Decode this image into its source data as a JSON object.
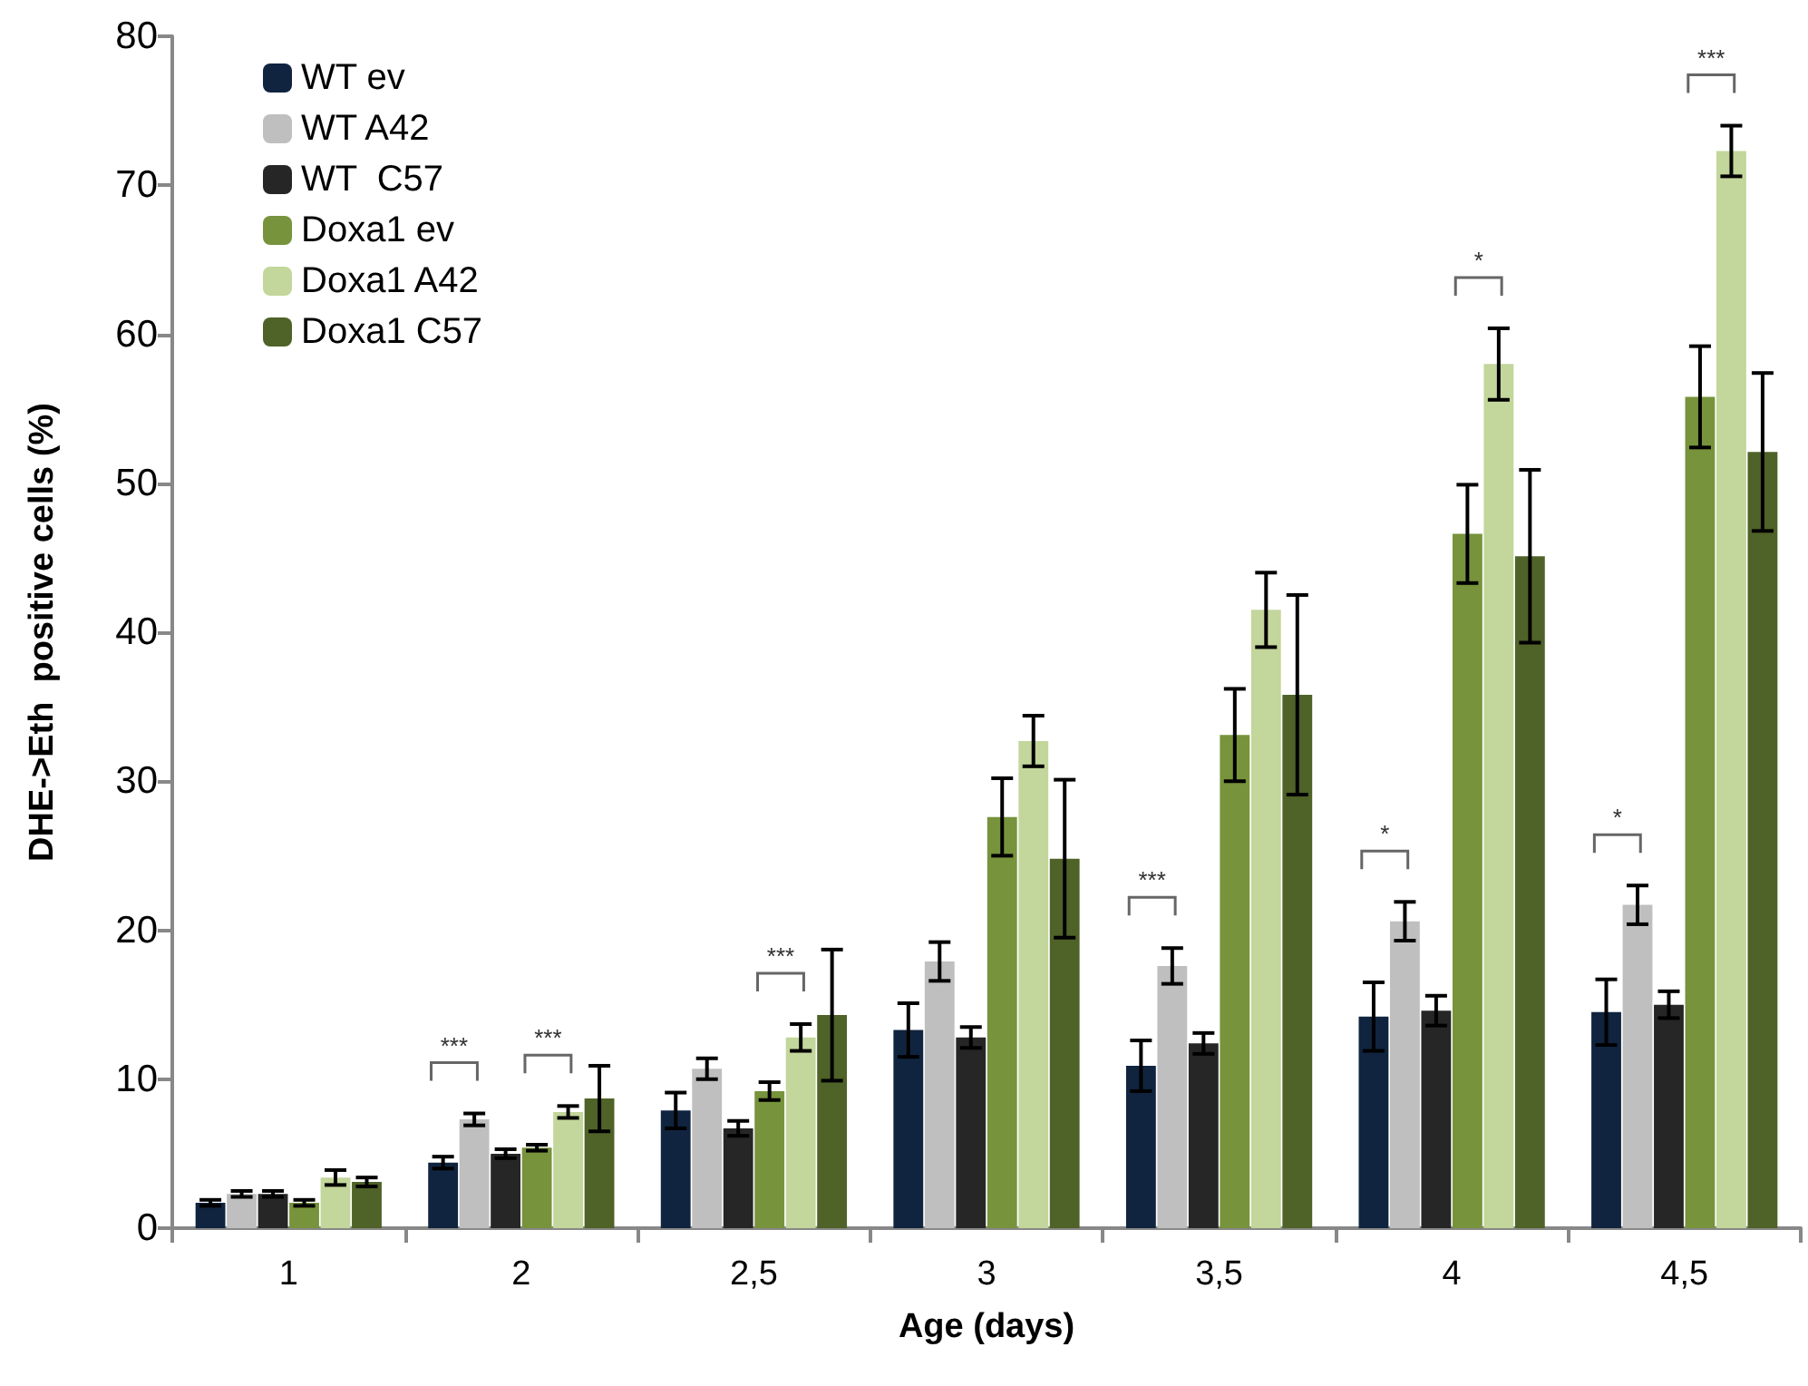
{
  "chart_data": {
    "type": "bar",
    "xlabel": "Age (days)",
    "ylabel": "DHE->Eth  positive cells (%)",
    "categories": [
      "1",
      "2",
      "2,5",
      "3",
      "3,5",
      "4",
      "4,5"
    ],
    "series": [
      {
        "name": "WT ev",
        "color": "#10243f",
        "values": [
          1.7,
          4.4,
          7.9,
          13.3,
          10.9,
          14.2,
          14.5
        ],
        "errors": [
          0.2,
          0.4,
          1.2,
          1.8,
          1.7,
          2.3,
          2.2
        ]
      },
      {
        "name": "WT A42",
        "color": "#bfbfbf",
        "values": [
          2.3,
          7.3,
          10.7,
          17.9,
          17.6,
          20.6,
          21.7
        ],
        "errors": [
          0.2,
          0.4,
          0.7,
          1.3,
          1.2,
          1.3,
          1.3
        ]
      },
      {
        "name": "WT  C57",
        "color": "#262626",
        "values": [
          2.3,
          5.0,
          6.7,
          12.8,
          12.4,
          14.6,
          15.0
        ],
        "errors": [
          0.2,
          0.3,
          0.5,
          0.7,
          0.7,
          1.0,
          0.9
        ]
      },
      {
        "name": "Doxa1 ev",
        "color": "#77933c",
        "values": [
          1.7,
          5.4,
          9.2,
          27.6,
          33.1,
          46.6,
          55.8
        ],
        "errors": [
          0.2,
          0.2,
          0.6,
          2.6,
          3.1,
          3.3,
          3.4
        ]
      },
      {
        "name": "Doxa1 A42",
        "color": "#c3d69b",
        "values": [
          3.4,
          7.8,
          12.8,
          32.7,
          41.5,
          58.0,
          72.3
        ],
        "errors": [
          0.5,
          0.4,
          0.9,
          1.7,
          2.5,
          2.4,
          1.7
        ]
      },
      {
        "name": "Doxa1 C57",
        "color": "#4f6228",
        "values": [
          3.1,
          8.7,
          14.3,
          24.8,
          35.8,
          45.1,
          52.1
        ],
        "errors": [
          0.3,
          2.2,
          4.4,
          5.3,
          6.7,
          5.8,
          5.3
        ]
      }
    ],
    "annotations": [
      "***",
      "***",
      "***",
      "***",
      "*",
      "*",
      "*",
      "***"
    ],
    "ylim": [
      0,
      80
    ],
    "yticks": [
      0,
      10,
      20,
      30,
      40,
      50,
      60,
      70,
      80
    ],
    "grid": false,
    "legend": "top left"
  }
}
